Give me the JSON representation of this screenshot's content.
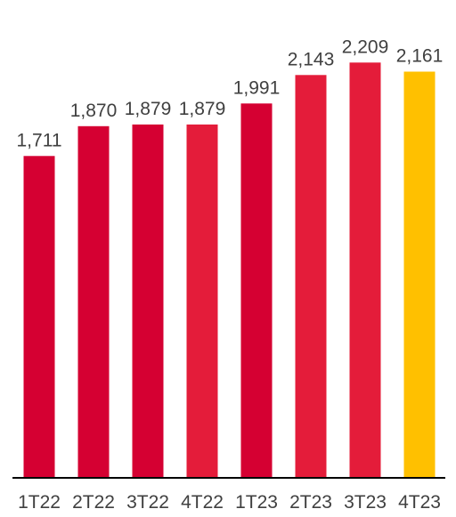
{
  "chart_data": {
    "type": "bar",
    "categories": [
      "1T22",
      "2T22",
      "3T22",
      "4T22",
      "1T23",
      "2T23",
      "3T23",
      "4T23"
    ],
    "values": [
      1711,
      1870,
      1879,
      1879,
      1991,
      2143,
      2209,
      2161
    ],
    "value_labels": [
      "1,711",
      "1,870",
      "1,879",
      "1,879",
      "1,991",
      "2,143",
      "2,209",
      "2,161"
    ],
    "bar_colors": [
      "#d50032",
      "#d50032",
      "#d50032",
      "#e41c3a",
      "#d50032",
      "#e41c3a",
      "#e41c3a",
      "#ffc000"
    ],
    "axis_color": "#000000",
    "ylim": [
      0,
      2300
    ],
    "grid": false,
    "legend": "none",
    "title": "",
    "xlabel": "",
    "ylabel": ""
  }
}
